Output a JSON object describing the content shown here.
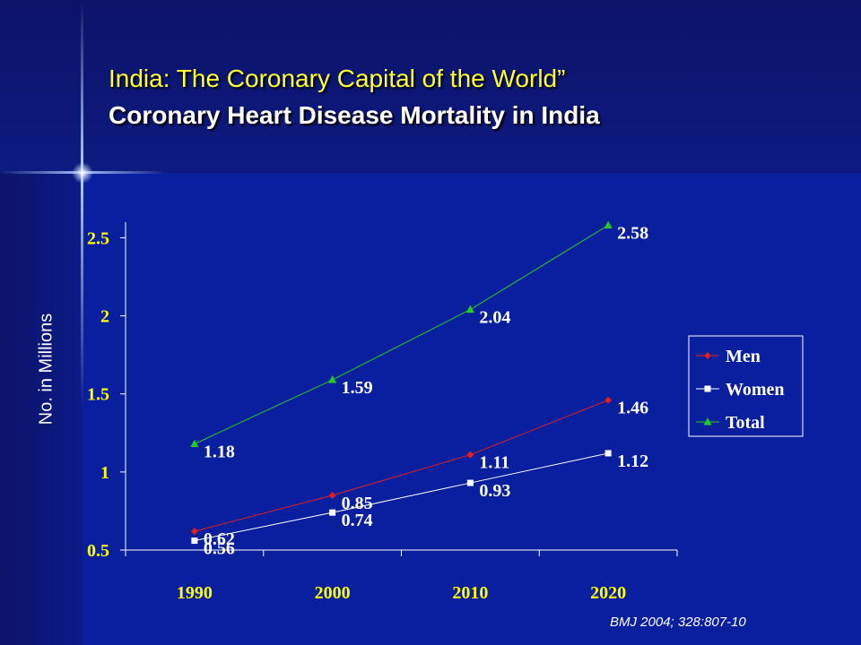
{
  "slide": {
    "title_line1": "India: The Coronary Capital of the World”",
    "title_line2": "Coronary Heart Disease Mortality in India",
    "citation": "BMJ 2004; 328:807-10",
    "colors": {
      "background": "#0a1f9e",
      "title": "#ffff33",
      "ticks": "#ffff00",
      "text": "#ffffff"
    }
  },
  "chart_data": {
    "type": "line",
    "ylabel": "No. in Millions",
    "xlabel": "",
    "categories": [
      "1990",
      "2000",
      "2010",
      "2020"
    ],
    "ylim": [
      0.5,
      2.6
    ],
    "yticks": [
      0.5,
      1,
      1.5,
      2,
      2.5
    ],
    "ytick_labels": [
      "0.5",
      "1",
      "1.5",
      "2",
      "2.5"
    ],
    "legend_position": "right",
    "grid": false,
    "series": [
      {
        "name": "Men",
        "values": [
          0.62,
          0.85,
          1.11,
          1.46
        ],
        "labels": [
          "0.62",
          "0.85",
          "1.11",
          "1.46"
        ],
        "color": "#e02020",
        "marker": "diamond"
      },
      {
        "name": "Women",
        "values": [
          0.56,
          0.74,
          0.93,
          1.12
        ],
        "labels": [
          "0.56",
          "0.74",
          "0.93",
          "1.12"
        ],
        "color": "#ffffff",
        "marker": "square"
      },
      {
        "name": "Total",
        "values": [
          1.18,
          1.59,
          2.04,
          2.58
        ],
        "labels": [
          "1.18",
          "1.59",
          "2.04",
          "2.58"
        ],
        "color": "#22cc22",
        "marker": "triangle"
      }
    ]
  }
}
